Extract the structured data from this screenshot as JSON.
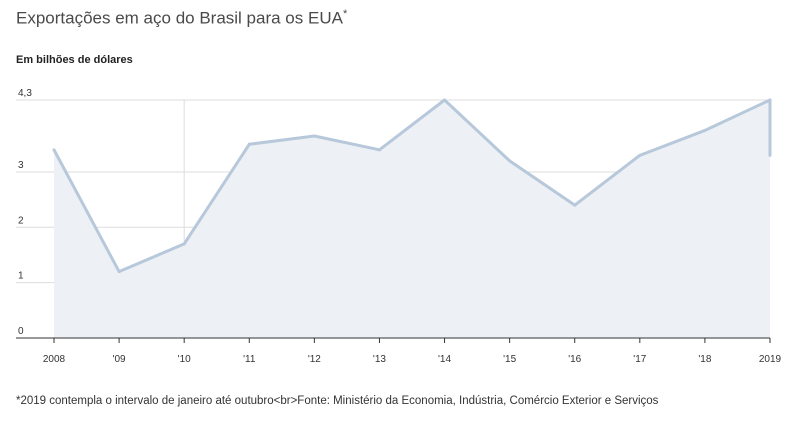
{
  "header": {
    "title": "Exportações em aço do Brasil para os EUA",
    "title_mark": "*",
    "unit": "Em bilhões de dólares"
  },
  "footnote": "*2019 contempla o intervalo de janeiro até outubro<br>Fonte: Ministério da Economia, Indústria, Comércio Exterior e Serviços",
  "chart_data": {
    "type": "area",
    "title": "Exportações em aço do Brasil para os EUA*",
    "ylabel": "Em bilhões de dólares",
    "x_tick_labels": [
      "2008",
      "'09",
      "'10",
      "'11",
      "'12",
      "'13",
      "'14",
      "'15",
      "'16",
      "'17",
      "'18",
      "2019"
    ],
    "y_tick_labels": [
      "0",
      "1",
      "2",
      "3",
      "4,3"
    ],
    "y_ticks": [
      0,
      1,
      2,
      3,
      4.3
    ],
    "ylim": [
      0,
      4.3
    ],
    "x": [
      2008,
      2009,
      2010,
      2011,
      2012,
      2013,
      2014,
      2015,
      2016,
      2017,
      2018,
      2019,
      2019
    ],
    "values": [
      3.4,
      1.2,
      1.7,
      3.5,
      3.65,
      3.4,
      4.3,
      3.2,
      2.4,
      3.3,
      3.75,
      4.3,
      3.3
    ],
    "grid": true,
    "colors": {
      "line": "#b7c8db",
      "fill": "#edf0f5",
      "grid": "#dddddd",
      "axis": "#333333"
    }
  }
}
